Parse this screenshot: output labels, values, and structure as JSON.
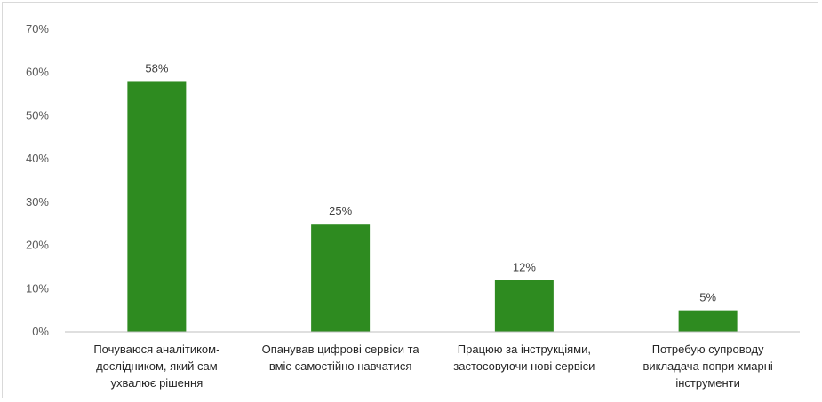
{
  "chart_data": {
    "type": "bar",
    "categories": [
      "Почуваюся аналітиком-дослідником, який сам ухвалює рішення",
      "Опанував цифрові сервіси та вміє самостійно навчатися",
      "Працюю за інструкціями, застосовуючи нові сервіси",
      "Потребую супроводу викладача попри хмарні інструменти"
    ],
    "category_lines": [
      [
        "Почуваюся аналітиком-",
        "дослідником, який сам",
        "ухвалює рішення"
      ],
      [
        "Опанував цифрові сервіси та",
        "вміє самостійно навчатися"
      ],
      [
        "Працюю за інструкціями,",
        "застосовуючи нові сервіси"
      ],
      [
        "Потребую супроводу",
        "викладача попри хмарні",
        "інструменти"
      ]
    ],
    "values": [
      58,
      25,
      12,
      5
    ],
    "data_labels": [
      "58%",
      "25%",
      "12%",
      "5%"
    ],
    "ylim": [
      0,
      70
    ],
    "yticks": [
      0,
      10,
      20,
      30,
      40,
      50,
      60,
      70
    ],
    "ytick_labels": [
      "0%",
      "10%",
      "20%",
      "30%",
      "40%",
      "50%",
      "60%",
      "70%"
    ],
    "title": "",
    "xlabel": "",
    "ylabel": "",
    "grid": false,
    "legend": "none",
    "bar_color": "#2e8b20",
    "axis_color": "#bfbfbf"
  }
}
